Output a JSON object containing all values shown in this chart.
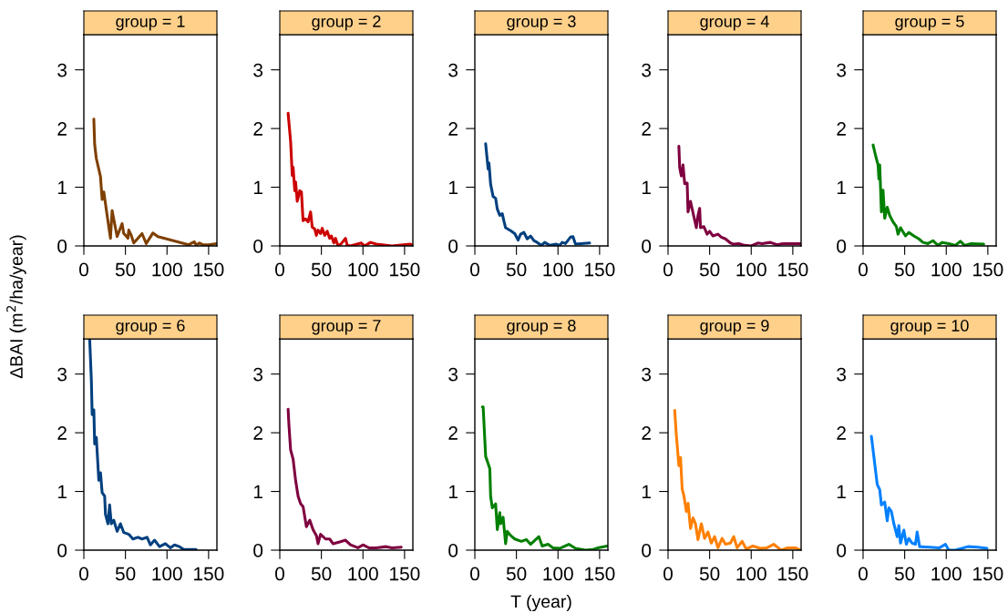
{
  "chart_data": [
    {
      "type": "line",
      "title": "group = 1",
      "ylabel": "ΔBAI (m$^{2}$/ha/year)",
      "color": "#7f3f00",
      "xlim": [
        0,
        160
      ],
      "ylim": [
        0,
        3.6
      ],
      "xticks": [
        0,
        50,
        100,
        150
      ],
      "yticks": [
        0,
        1,
        2,
        3
      ],
      "x": [
        12,
        13,
        15,
        20,
        22,
        24,
        28,
        32,
        34,
        40,
        46,
        48,
        51,
        53,
        54,
        57,
        60,
        70,
        75,
        83,
        89,
        126,
        133,
        135,
        139,
        143,
        150,
        160
      ],
      "values": [
        2.16,
        1.73,
        1.49,
        1.18,
        0.79,
        0.92,
        0.52,
        0.13,
        0.6,
        0.16,
        0.38,
        0.21,
        0.17,
        0.13,
        0.27,
        0.18,
        0.05,
        0.21,
        0.04,
        0.22,
        0.16,
        0.02,
        0.07,
        0.01,
        0.05,
        0.02,
        0.02,
        0.04
      ]
    },
    {
      "type": "line",
      "title": "group = 2",
      "color": "#cc0000",
      "xlim": [
        0,
        160
      ],
      "ylim": [
        0,
        3.6
      ],
      "xticks": [
        0,
        50,
        100,
        150
      ],
      "yticks": [
        0,
        1,
        2,
        3
      ],
      "x": [
        10,
        13,
        15,
        16,
        18,
        19,
        21,
        24,
        26,
        28,
        31,
        34,
        37,
        39,
        42,
        44,
        46,
        49,
        51,
        54,
        57,
        60,
        62,
        65,
        67,
        70,
        74,
        79,
        81,
        85,
        98,
        102,
        109,
        116,
        135,
        157,
        160
      ],
      "values": [
        2.26,
        1.78,
        1.2,
        1.34,
        0.94,
        1.09,
        0.76,
        0.94,
        0.92,
        0.43,
        0.46,
        0.41,
        0.58,
        0.32,
        0.29,
        0.18,
        0.27,
        0.21,
        0.3,
        0.18,
        0.25,
        0.13,
        0.17,
        0.05,
        0.13,
        0.0,
        0.04,
        0.13,
        0.01,
        0.0,
        0.05,
        0.0,
        0.06,
        0.03,
        0.0,
        0.03,
        0.01
      ]
    },
    {
      "type": "line",
      "title": "group = 3",
      "color": "#00407f",
      "xlim": [
        0,
        160
      ],
      "ylim": [
        0,
        3.6
      ],
      "xticks": [
        0,
        50,
        100,
        150
      ],
      "yticks": [
        0,
        1,
        2,
        3
      ],
      "x": [
        13,
        16,
        17,
        19,
        22,
        25,
        27,
        30,
        33,
        35,
        37,
        43,
        48,
        52,
        55,
        59,
        63,
        67,
        71,
        75,
        80,
        84,
        90,
        98,
        102,
        105,
        109,
        115,
        118,
        121,
        138
      ],
      "values": [
        1.74,
        1.31,
        1.41,
        1.05,
        0.84,
        0.81,
        0.63,
        0.52,
        0.55,
        0.42,
        0.31,
        0.26,
        0.21,
        0.1,
        0.2,
        0.23,
        0.12,
        0.17,
        0.09,
        0.06,
        0.01,
        0.06,
        0.01,
        0.03,
        0.01,
        0.06,
        0.04,
        0.15,
        0.16,
        0.03,
        0.05
      ]
    },
    {
      "type": "line",
      "title": "group = 4",
      "color": "#7f0040",
      "xlim": [
        0,
        160
      ],
      "ylim": [
        0,
        3.6
      ],
      "xticks": [
        0,
        50,
        100,
        150
      ],
      "yticks": [
        0,
        1,
        2,
        3
      ],
      "x": [
        13,
        14,
        16,
        18,
        20,
        23,
        24,
        27,
        29,
        34,
        36,
        38,
        39,
        43,
        47,
        50,
        54,
        60,
        64,
        69,
        75,
        79,
        85,
        92,
        100,
        108,
        113,
        123,
        131,
        138,
        159
      ],
      "values": [
        1.7,
        1.33,
        1.19,
        1.38,
        1.06,
        1.07,
        0.58,
        0.76,
        0.63,
        0.31,
        0.52,
        0.64,
        0.31,
        0.33,
        0.2,
        0.25,
        0.17,
        0.2,
        0.15,
        0.12,
        0.05,
        0.03,
        0.04,
        0.01,
        0.0,
        0.05,
        0.04,
        0.06,
        0.02,
        0.04,
        0.04
      ]
    },
    {
      "type": "line",
      "title": "group = 5",
      "color": "#007f00",
      "xlim": [
        0,
        160
      ],
      "ylim": [
        0,
        3.6
      ],
      "xticks": [
        0,
        50,
        100,
        150
      ],
      "yticks": [
        0,
        1,
        2,
        3
      ],
      "x": [
        12,
        15,
        18,
        19,
        20,
        22,
        24,
        26,
        29,
        32,
        36,
        40,
        42,
        45,
        51,
        55,
        61,
        67,
        72,
        78,
        84,
        90,
        95,
        103,
        111,
        117,
        122,
        130,
        145
      ],
      "values": [
        1.72,
        1.54,
        1.38,
        1.14,
        1.38,
        0.58,
        0.95,
        0.47,
        0.66,
        0.52,
        0.41,
        0.33,
        0.2,
        0.31,
        0.17,
        0.23,
        0.17,
        0.12,
        0.06,
        0.04,
        0.09,
        0.01,
        0.06,
        0.04,
        0.01,
        0.08,
        0.01,
        0.04,
        0.03
      ]
    },
    {
      "type": "line",
      "title": "group = 6",
      "color": "#00407f",
      "xlim": [
        0,
        160
      ],
      "ylim": [
        0,
        3.6
      ],
      "xticks": [
        0,
        50,
        100,
        150
      ],
      "yticks": [
        0,
        1,
        2,
        3
      ],
      "x": [
        7,
        9,
        10,
        12,
        13,
        15,
        18,
        20,
        22,
        25,
        26,
        29,
        31,
        33,
        36,
        40,
        44,
        48,
        54,
        59,
        65,
        70,
        76,
        80,
        85,
        91,
        98,
        104,
        109,
        115,
        120,
        135
      ],
      "values": [
        3.6,
        2.91,
        2.31,
        2.39,
        1.81,
        1.92,
        1.19,
        1.32,
        0.98,
        0.92,
        0.61,
        0.45,
        0.77,
        0.45,
        0.51,
        0.32,
        0.45,
        0.3,
        0.27,
        0.19,
        0.22,
        0.19,
        0.22,
        0.09,
        0.17,
        0.06,
        0.11,
        0.04,
        0.09,
        0.06,
        0.01,
        0.01
      ]
    },
    {
      "type": "line",
      "title": "group = 7",
      "color": "#7f0040",
      "xlim": [
        0,
        160
      ],
      "ylim": [
        0,
        3.6
      ],
      "xticks": [
        0,
        50,
        100,
        150
      ],
      "yticks": [
        0,
        1,
        2,
        3
      ],
      "x": [
        10,
        11,
        13,
        16,
        19,
        22,
        25,
        28,
        32,
        36,
        40,
        44,
        46,
        49,
        55,
        60,
        64,
        72,
        79,
        85,
        94,
        100,
        107,
        116,
        128,
        135,
        146
      ],
      "values": [
        2.4,
        2.13,
        1.71,
        1.55,
        1.19,
        0.92,
        0.79,
        0.74,
        0.4,
        0.51,
        0.35,
        0.25,
        0.11,
        0.27,
        0.19,
        0.19,
        0.11,
        0.14,
        0.17,
        0.09,
        0.04,
        0.09,
        0.04,
        0.04,
        0.06,
        0.04,
        0.05
      ]
    },
    {
      "type": "line",
      "title": "group = 8",
      "xlabel": "T (year)",
      "color": "#007f00",
      "xlim": [
        0,
        160
      ],
      "ylim": [
        0,
        3.6
      ],
      "xticks": [
        0,
        50,
        100,
        150
      ],
      "yticks": [
        0,
        1,
        2,
        3
      ],
      "x": [
        9,
        10,
        13,
        18,
        19,
        21,
        25,
        27,
        30,
        31,
        34,
        37,
        39,
        43,
        48,
        56,
        62,
        67,
        77,
        81,
        88,
        94,
        102,
        113,
        121,
        133,
        142,
        148,
        159
      ],
      "values": [
        2.44,
        2.44,
        1.6,
        1.39,
        0.92,
        0.72,
        0.79,
        0.35,
        0.64,
        0.45,
        0.56,
        0.11,
        0.32,
        0.25,
        0.19,
        0.15,
        0.18,
        0.1,
        0.23,
        0.07,
        0.1,
        0.04,
        0.03,
        0.1,
        0.03,
        0.0,
        0.01,
        0.04,
        0.07
      ]
    },
    {
      "type": "line",
      "title": "group = 9",
      "color": "#ff7f00",
      "xlim": [
        0,
        160
      ],
      "ylim": [
        0,
        3.6
      ],
      "xticks": [
        0,
        50,
        100,
        150
      ],
      "yticks": [
        0,
        1,
        2,
        3
      ],
      "x": [
        8,
        10,
        11,
        13,
        15,
        17,
        19,
        22,
        24,
        27,
        30,
        33,
        36,
        40,
        44,
        48,
        52,
        56,
        60,
        65,
        69,
        75,
        79,
        83,
        89,
        94,
        102,
        111,
        119,
        127,
        136,
        144,
        153,
        159
      ],
      "values": [
        2.38,
        1.95,
        1.79,
        1.44,
        1.58,
        1.04,
        0.93,
        0.66,
        0.8,
        0.37,
        0.55,
        0.45,
        0.18,
        0.45,
        0.2,
        0.31,
        0.12,
        0.23,
        0.04,
        0.2,
        0.1,
        0.12,
        0.23,
        0.04,
        0.15,
        0.02,
        0.07,
        0.03,
        0.04,
        0.1,
        0.0,
        0.04,
        0.04,
        0.0
      ]
    },
    {
      "type": "line",
      "title": "group = 10",
      "color": "#0080ff",
      "xlim": [
        0,
        160
      ],
      "ylim": [
        0,
        3.6
      ],
      "xticks": [
        0,
        50,
        100,
        150
      ],
      "yticks": [
        0,
        1,
        2,
        3
      ],
      "x": [
        10,
        14,
        17,
        20,
        22,
        26,
        29,
        31,
        34,
        37,
        41,
        43,
        45,
        49,
        52,
        55,
        59,
        63,
        65,
        68,
        80,
        92,
        99,
        103,
        111,
        126,
        138,
        149
      ],
      "values": [
        1.94,
        1.47,
        1.12,
        1.03,
        0.77,
        0.82,
        0.5,
        0.72,
        0.66,
        0.45,
        0.23,
        0.42,
        0.12,
        0.34,
        0.1,
        0.2,
        0.12,
        0.1,
        0.31,
        0.06,
        0.05,
        0.04,
        0.1,
        0.0,
        0.0,
        0.06,
        0.05,
        0.03
      ]
    }
  ]
}
